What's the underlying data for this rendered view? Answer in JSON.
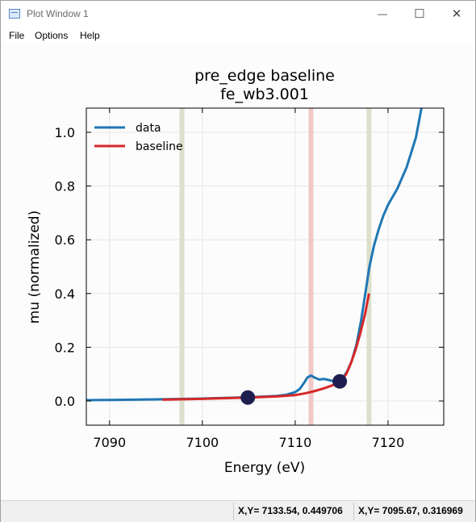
{
  "window": {
    "title": "Plot Window 1",
    "minimize_glyph": "—",
    "maximize_glyph": "☐",
    "close_glyph": "✕"
  },
  "menu": [
    {
      "label": "File"
    },
    {
      "label": "Options"
    },
    {
      "label": "Help"
    }
  ],
  "status": {
    "cursor_1": "X,Y= 7133.54, 0.449706",
    "cursor_2": "X,Y= 7095.67, 0.316969"
  },
  "colors": {
    "data": "#1f77b4",
    "baseline": "#d62728",
    "marker": "#1f1f4f",
    "vline_pre": "#dedfcb",
    "vline_edge": "#f0c8c8"
  },
  "chart_data": {
    "type": "line",
    "title": "pre_edge baseline",
    "subtitle": "fe_wb3.001",
    "xlabel": "Energy (eV)",
    "ylabel": "mu (normalized)",
    "xlim": [
      7087.5,
      7126
    ],
    "ylim": [
      -0.09,
      1.09
    ],
    "xticks": [
      "7090",
      "7100",
      "7110",
      "7120"
    ],
    "yticks": [
      "0.0",
      "0.2",
      "0.4",
      "0.6",
      "0.8",
      "1.0"
    ],
    "grid": true,
    "legend": "top-left",
    "series": [
      {
        "name": "data",
        "x": [
          7087.5,
          7090,
          7095,
          7100,
          7105,
          7108,
          7109,
          7110,
          7110.5,
          7110.9,
          7111.3,
          7111.7,
          7112.1,
          7112.6,
          7113.1,
          7113.6,
          7114.1,
          7114.6,
          7115.1,
          7115.6,
          7116.1,
          7116.6,
          7117.1,
          7117.6,
          7118,
          7118.5,
          7119,
          7119.5,
          7120,
          7120.5,
          7121,
          7122,
          7123,
          7123.6
        ],
        "y": [
          0.003,
          0.004,
          0.006,
          0.009,
          0.014,
          0.019,
          0.023,
          0.033,
          0.045,
          0.065,
          0.087,
          0.095,
          0.087,
          0.08,
          0.082,
          0.078,
          0.074,
          0.072,
          0.085,
          0.11,
          0.15,
          0.21,
          0.3,
          0.41,
          0.5,
          0.58,
          0.64,
          0.69,
          0.73,
          0.76,
          0.79,
          0.87,
          0.98,
          1.09
        ]
      },
      {
        "name": "baseline",
        "x": [
          7095.7,
          7100,
          7105,
          7108,
          7110,
          7111,
          7112,
          7113,
          7114,
          7114.8,
          7115.5,
          7116,
          7116.5,
          7117,
          7117.5,
          7117.95
        ],
        "y": [
          0.005,
          0.008,
          0.013,
          0.017,
          0.022,
          0.028,
          0.036,
          0.046,
          0.058,
          0.073,
          0.1,
          0.14,
          0.19,
          0.25,
          0.32,
          0.4
        ]
      }
    ],
    "vlines": [
      {
        "x": 7097.8,
        "role": "pre1"
      },
      {
        "x": 7111.7,
        "role": "e0"
      },
      {
        "x": 7117.95,
        "role": "pre2"
      }
    ],
    "markers": [
      {
        "x": 7104.9,
        "y": 0.013
      },
      {
        "x": 7114.8,
        "y": 0.073
      }
    ]
  }
}
